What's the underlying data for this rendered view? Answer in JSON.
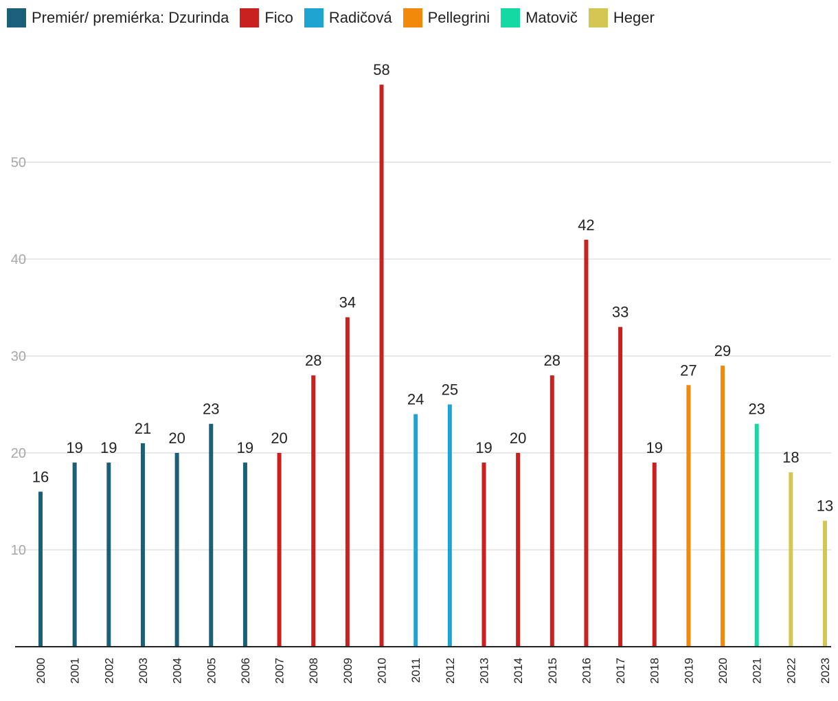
{
  "chart_data": {
    "type": "bar",
    "title": "",
    "xlabel": "",
    "ylabel": "",
    "ylim": [
      0,
      60
    ],
    "yticks": [
      10,
      20,
      30,
      40,
      50
    ],
    "grid": true,
    "legend_position": "top-left",
    "legend": [
      {
        "name": "Premiér/ premiérka: Dzurinda",
        "color": "#1b5f7a"
      },
      {
        "name": "Fico",
        "color": "#c8211f"
      },
      {
        "name": "Radičová",
        "color": "#1fa3d1"
      },
      {
        "name": "Pellegrini",
        "color": "#f2890b"
      },
      {
        "name": "Matovič",
        "color": "#14d9a3"
      },
      {
        "name": "Heger",
        "color": "#d3c653"
      }
    ],
    "categories": [
      "2000",
      "2001",
      "2002",
      "2003",
      "2004",
      "2005",
      "2006",
      "2007",
      "2008",
      "2009",
      "2010",
      "2011",
      "2012",
      "2013",
      "2014",
      "2015",
      "2016",
      "2017",
      "2018",
      "2019",
      "2020",
      "2021",
      "2022",
      "2023"
    ],
    "values": [
      16,
      19,
      19,
      21,
      20,
      23,
      19,
      20,
      28,
      34,
      58,
      24,
      25,
      19,
      20,
      28,
      42,
      33,
      19,
      27,
      29,
      23,
      18,
      13
    ],
    "series_index": [
      0,
      0,
      0,
      0,
      0,
      0,
      0,
      1,
      1,
      1,
      1,
      2,
      2,
      1,
      1,
      1,
      1,
      1,
      1,
      3,
      3,
      4,
      5,
      5
    ]
  }
}
